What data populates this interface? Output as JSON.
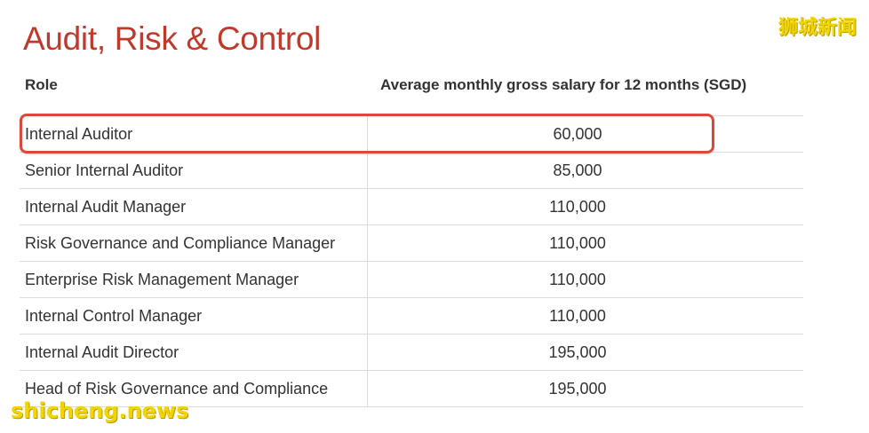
{
  "title": "Audit, Risk & Control",
  "watermark_cn": "狮城新闻",
  "watermark_en": "shicheng.news",
  "table": {
    "headers": {
      "role": "Role",
      "salary": "Average monthly gross salary for 12 months (SGD)"
    },
    "rows": [
      {
        "role": "Internal Auditor",
        "salary": "60,000"
      },
      {
        "role": "Senior Internal Auditor",
        "salary": "85,000"
      },
      {
        "role": "Internal Audit Manager",
        "salary": "110,000"
      },
      {
        "role": "Risk Governance and Compliance Manager",
        "salary": "110,000"
      },
      {
        "role": "Enterprise Risk Management Manager",
        "salary": "110,000"
      },
      {
        "role": "Internal Control Manager",
        "salary": "110,000"
      },
      {
        "role": "Internal Audit Director",
        "salary": "195,000"
      },
      {
        "role": "Head of Risk Governance and Compliance",
        "salary": "195,000"
      }
    ]
  },
  "colors": {
    "title": "#c0392b",
    "highlight": "#d94a3a",
    "watermark": "#f2d500"
  }
}
